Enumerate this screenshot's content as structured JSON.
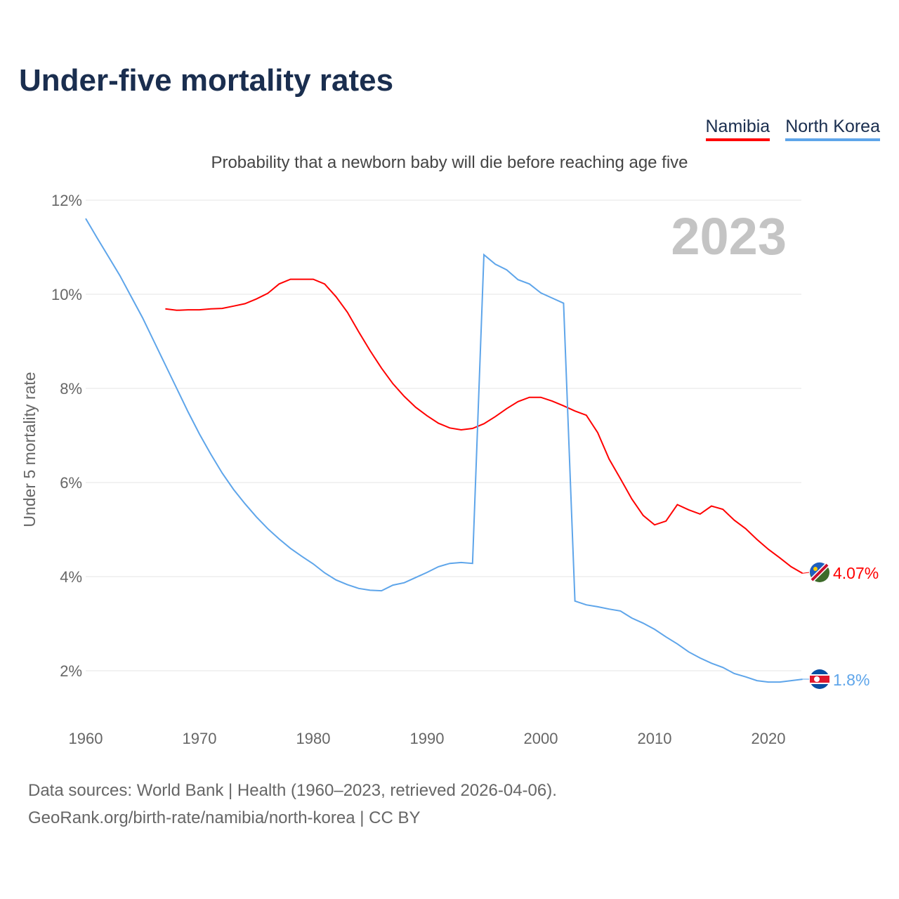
{
  "title": "Under-five mortality rates",
  "subtitle": "Probability that a newborn baby will die before reaching age five",
  "legend": [
    {
      "name": "Namibia",
      "color": "#ff0000"
    },
    {
      "name": "North Korea",
      "color": "#5ea5ea"
    }
  ],
  "year_label": "2023",
  "source_line1": "Data sources: World Bank | Health (1960–2023, retrieved 2026-04-06).",
  "source_line2": "GeoRank.org/birth-rate/namibia/north-korea | CC BY",
  "chart_data": {
    "type": "line",
    "title": "Under-five mortality rates",
    "ylabel": "Under 5 mortality rate",
    "xlabel": "",
    "xlim": [
      1960,
      2023
    ],
    "ylim": [
      1,
      12
    ],
    "yticks": [
      2,
      4,
      6,
      8,
      10,
      12
    ],
    "ytick_labels": [
      "2%",
      "4%",
      "6%",
      "8%",
      "10%",
      "12%"
    ],
    "xticks": [
      1960,
      1970,
      1980,
      1990,
      2000,
      2010,
      2020
    ],
    "grid": true,
    "series": [
      {
        "name": "Namibia",
        "color": "#ff0000",
        "end_label": "4.07%",
        "start_year": 1967,
        "values": [
          9.69,
          9.66,
          9.67,
          9.67,
          9.69,
          9.7,
          9.75,
          9.8,
          9.9,
          10.02,
          10.22,
          10.32,
          10.32,
          10.32,
          10.22,
          9.95,
          9.62,
          9.2,
          8.8,
          8.43,
          8.1,
          7.83,
          7.6,
          7.42,
          7.26,
          7.16,
          7.12,
          7.15,
          7.25,
          7.4,
          7.57,
          7.72,
          7.81,
          7.81,
          7.73,
          7.63,
          7.52,
          7.43,
          7.06,
          6.5,
          6.08,
          5.65,
          5.3,
          5.1,
          5.18,
          5.53,
          5.42,
          5.33,
          5.5,
          5.43,
          5.2,
          5.02,
          4.79,
          4.58,
          4.4,
          4.21,
          4.07
        ]
      },
      {
        "name": "North Korea",
        "color": "#5ea5ea",
        "end_label": "1.8%",
        "start_year": 1960,
        "values": [
          11.61,
          11.2,
          10.8,
          10.4,
          9.95,
          9.5,
          9.0,
          8.5,
          8.0,
          7.5,
          7.03,
          6.6,
          6.2,
          5.85,
          5.55,
          5.27,
          5.02,
          4.8,
          4.6,
          4.43,
          4.27,
          4.08,
          3.93,
          3.83,
          3.75,
          3.71,
          3.7,
          3.82,
          3.87,
          3.98,
          4.09,
          4.21,
          4.28,
          4.3,
          4.28,
          10.84,
          10.64,
          10.52,
          10.31,
          10.22,
          10.03,
          9.92,
          9.81,
          3.48,
          3.4,
          3.36,
          3.31,
          3.27,
          3.12,
          3.01,
          2.88,
          2.72,
          2.57,
          2.4,
          2.27,
          2.16,
          2.07,
          1.94,
          1.87,
          1.79,
          1.76,
          1.76,
          1.79,
          1.82
        ]
      }
    ]
  }
}
